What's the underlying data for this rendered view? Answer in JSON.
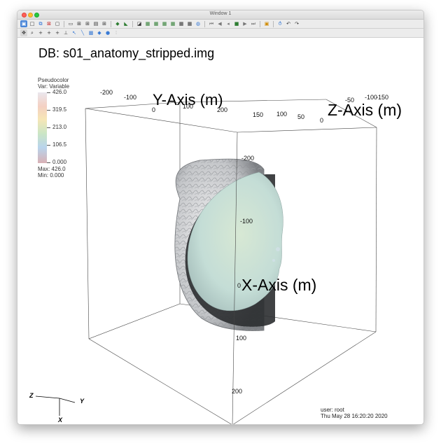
{
  "window": {
    "title": "Window 1"
  },
  "toolbar_row1": [
    "active-window-icon",
    "new-window-icon",
    "clone-window-icon",
    "delete-window-icon",
    "clear-window-icon",
    "layout-1x2-icon",
    "layout-2x2-icon",
    "layout-3x2-icon",
    "layout-2x4-icon",
    "layout-3x3-icon",
    "add-plot-icon",
    "add-operator-icon",
    "lock-view-icon",
    "lock-time-icon",
    "lock-tools-icon",
    "copy-view-icon",
    "copy-lighting-icon",
    "copy-annotation-icon",
    "copy-plots-icon",
    "copy-all-icon",
    "reset-icon",
    "rewind-icon",
    "back-step-icon",
    "stop-icon",
    "play-icon",
    "forward-step-icon",
    "fullscreen-icon",
    "spin-icon",
    "undo-view-icon",
    "redo-view-icon"
  ],
  "toolbar_row2": [
    "navigate-icon",
    "zoom-icon",
    "zone-pick-icon",
    "node-pick-icon",
    "point-pick-icon",
    "line-out-icon",
    "rotate-icon",
    "pan-icon",
    "box-tool-icon",
    "plane-tool-icon",
    "sphere-tool-icon",
    "line-tool-icon"
  ],
  "plot": {
    "db_title": "DB: s01_anatomy_stripped.img",
    "legend": {
      "plot_type": "Pseudocolor",
      "var_label": "Var: Variable",
      "ticks": [
        "426.0",
        "319.5",
        "213.0",
        "106.5",
        "0.000"
      ],
      "max_text": "Max:  426.0",
      "min_text": "Min:  0.000"
    },
    "axes": {
      "x_label": "X-Axis (m)",
      "y_label": "Y-Axis (m)",
      "z_label": "Z-Axis (m)",
      "x_ticks": [
        "-200",
        "-100",
        "0",
        "100",
        "200"
      ],
      "y_ticks": [
        "-200",
        "-100",
        "0",
        "100",
        "200"
      ],
      "z_ticks": [
        "150",
        "100",
        "50",
        "0",
        "-50",
        "-100",
        "-150"
      ]
    },
    "triad": {
      "x": "X",
      "y": "Y",
      "z": "Z"
    },
    "user": "user: root",
    "timestamp": "Thu May 28 16:20:20 2020"
  },
  "colors": {
    "legend_min": "#d9b1b5",
    "legend_low": "#b9d4ec",
    "legend_mid": "#cbe6c5",
    "legend_high": "#f6e6b6",
    "legend_max": "#eae7ee",
    "brain_surface": "#cdd3d6",
    "slice_face": "#c8dfcf"
  }
}
